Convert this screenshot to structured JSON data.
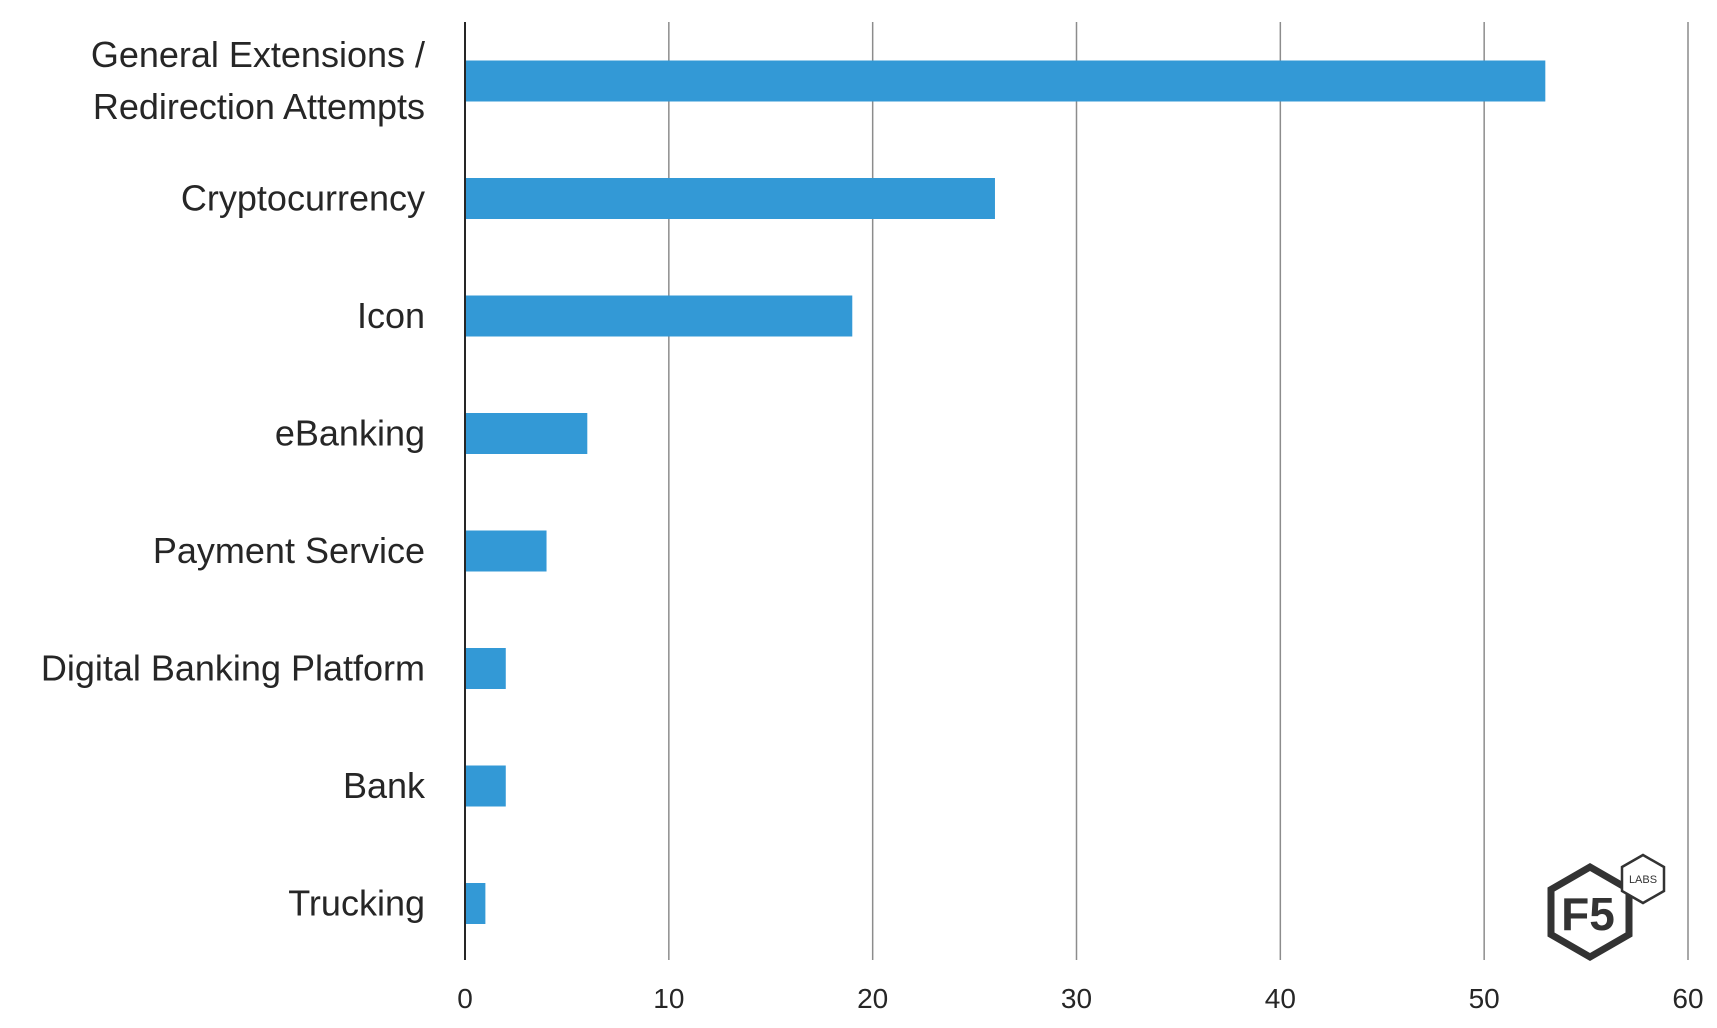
{
  "chart_data": {
    "type": "bar",
    "orientation": "horizontal",
    "title": "",
    "xlabel": "",
    "ylabel": "",
    "categories": [
      "General Extensions / Redirection Attempts",
      "Cryptocurrency",
      "Icon",
      "eBanking",
      "Payment Service",
      "Digital Banking Platform",
      "Bank",
      "Trucking"
    ],
    "category_lines": [
      [
        "General Extensions /",
        "Redirection Attempts"
      ],
      [
        "Cryptocurrency"
      ],
      [
        "Icon"
      ],
      [
        "eBanking"
      ],
      [
        "Payment Service"
      ],
      [
        "Digital Banking Platform"
      ],
      [
        "Bank"
      ],
      [
        "Trucking"
      ]
    ],
    "values": [
      53,
      26,
      19,
      6,
      4,
      2,
      2,
      1
    ],
    "xlim": [
      0,
      60
    ],
    "xticks": [
      "0",
      "10",
      "20",
      "30",
      "40",
      "50",
      "60"
    ],
    "grid": "vertical",
    "legend": "none",
    "bar_color": "#3399d6",
    "grid_color": "#8c8c8c",
    "axis_color": "#262626"
  },
  "logo": {
    "main_text": "F5",
    "badge_text": "LABS"
  }
}
